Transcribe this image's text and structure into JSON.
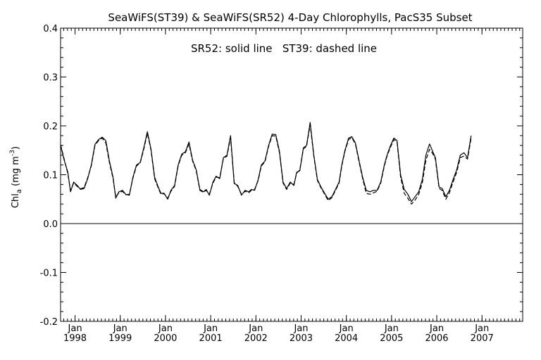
{
  "chart_data": {
    "type": "line",
    "title": "SeaWiFS(ST39) & SeaWiFS(SR52) 4-Day Chlorophylls, PacS35 Subset",
    "annotation": "SR52: solid line   ST39: dashed line",
    "ylabel": {
      "main": "Chl",
      "subscript": "a",
      "unit_open": " (mg m",
      "unit_sup": "-3",
      "unit_close": ")"
    },
    "ylim": [
      -0.2,
      0.4
    ],
    "yticks": [
      -0.2,
      -0.1,
      0.0,
      0.1,
      0.2,
      0.3,
      0.4
    ],
    "ytick_labels": [
      "-0.2",
      "-0.1",
      "0.0",
      "0.1",
      "0.2",
      "0.3",
      "0.4"
    ],
    "zero_line": 0.0,
    "xlim": [
      1997.68,
      2007.9
    ],
    "xticks": [
      {
        "x": 1998.0,
        "month": "Jan",
        "year": "1998"
      },
      {
        "x": 1999.0,
        "month": "Jan",
        "year": "1999"
      },
      {
        "x": 2000.0,
        "month": "Jan",
        "year": "2000"
      },
      {
        "x": 2001.0,
        "month": "Jan",
        "year": "2001"
      },
      {
        "x": 2002.0,
        "month": "Jan",
        "year": "2002"
      },
      {
        "x": 2003.0,
        "month": "Jan",
        "year": "2003"
      },
      {
        "x": 2004.0,
        "month": "Jan",
        "year": "2004"
      },
      {
        "x": 2005.0,
        "month": "Jan",
        "year": "2005"
      },
      {
        "x": 2006.0,
        "month": "Jan",
        "year": "2006"
      },
      {
        "x": 2007.0,
        "month": "Jan",
        "year": "2007"
      }
    ],
    "minor_ticks_per_year": 12,
    "grid": false,
    "series": [
      {
        "name": "SR52",
        "style": "solid",
        "points": [
          [
            1997.68,
            0.16
          ],
          [
            1997.76,
            0.13
          ],
          [
            1997.84,
            0.105
          ],
          [
            1997.9,
            0.065
          ],
          [
            1997.97,
            0.085
          ],
          [
            1998.05,
            0.078
          ],
          [
            1998.12,
            0.07
          ],
          [
            1998.2,
            0.072
          ],
          [
            1998.28,
            0.092
          ],
          [
            1998.36,
            0.12
          ],
          [
            1998.44,
            0.162
          ],
          [
            1998.52,
            0.172
          ],
          [
            1998.6,
            0.177
          ],
          [
            1998.68,
            0.17
          ],
          [
            1998.76,
            0.128
          ],
          [
            1998.84,
            0.095
          ],
          [
            1998.9,
            0.052
          ],
          [
            1998.97,
            0.065
          ],
          [
            1999.05,
            0.068
          ],
          [
            1999.12,
            0.06
          ],
          [
            1999.2,
            0.058
          ],
          [
            1999.28,
            0.095
          ],
          [
            1999.36,
            0.12
          ],
          [
            1999.44,
            0.125
          ],
          [
            1999.52,
            0.155
          ],
          [
            1999.6,
            0.188
          ],
          [
            1999.68,
            0.152
          ],
          [
            1999.76,
            0.095
          ],
          [
            1999.84,
            0.075
          ],
          [
            1999.9,
            0.062
          ],
          [
            1999.97,
            0.062
          ],
          [
            2000.05,
            0.05
          ],
          [
            2000.12,
            0.068
          ],
          [
            2000.2,
            0.078
          ],
          [
            2000.28,
            0.12
          ],
          [
            2000.36,
            0.142
          ],
          [
            2000.44,
            0.147
          ],
          [
            2000.52,
            0.167
          ],
          [
            2000.6,
            0.13
          ],
          [
            2000.68,
            0.11
          ],
          [
            2000.76,
            0.07
          ],
          [
            2000.84,
            0.065
          ],
          [
            2000.9,
            0.07
          ],
          [
            2000.97,
            0.058
          ],
          [
            2001.05,
            0.085
          ],
          [
            2001.12,
            0.097
          ],
          [
            2001.2,
            0.092
          ],
          [
            2001.28,
            0.135
          ],
          [
            2001.36,
            0.14
          ],
          [
            2001.44,
            0.18
          ],
          [
            2001.52,
            0.082
          ],
          [
            2001.6,
            0.078
          ],
          [
            2001.68,
            0.058
          ],
          [
            2001.76,
            0.068
          ],
          [
            2001.84,
            0.065
          ],
          [
            2001.9,
            0.07
          ],
          [
            2001.97,
            0.068
          ],
          [
            2002.05,
            0.09
          ],
          [
            2002.12,
            0.12
          ],
          [
            2002.2,
            0.128
          ],
          [
            2002.28,
            0.16
          ],
          [
            2002.36,
            0.183
          ],
          [
            2002.44,
            0.182
          ],
          [
            2002.52,
            0.148
          ],
          [
            2002.6,
            0.085
          ],
          [
            2002.68,
            0.072
          ],
          [
            2002.76,
            0.085
          ],
          [
            2002.84,
            0.078
          ],
          [
            2002.9,
            0.105
          ],
          [
            2002.97,
            0.108
          ],
          [
            2003.05,
            0.155
          ],
          [
            2003.12,
            0.16
          ],
          [
            2003.2,
            0.207
          ],
          [
            2003.28,
            0.14
          ],
          [
            2003.36,
            0.09
          ],
          [
            2003.44,
            0.075
          ],
          [
            2003.52,
            0.062
          ],
          [
            2003.6,
            0.05
          ],
          [
            2003.68,
            0.055
          ],
          [
            2003.76,
            0.07
          ],
          [
            2003.84,
            0.085
          ],
          [
            2003.9,
            0.12
          ],
          [
            2003.97,
            0.15
          ],
          [
            2004.05,
            0.175
          ],
          [
            2004.12,
            0.178
          ],
          [
            2004.2,
            0.165
          ],
          [
            2004.28,
            0.13
          ],
          [
            2004.36,
            0.095
          ],
          [
            2004.44,
            0.068
          ],
          [
            2004.52,
            0.065
          ],
          [
            2004.6,
            0.068
          ],
          [
            2004.68,
            0.068
          ],
          [
            2004.76,
            0.085
          ],
          [
            2004.84,
            0.12
          ],
          [
            2004.9,
            0.14
          ],
          [
            2004.97,
            0.158
          ],
          [
            2005.05,
            0.175
          ],
          [
            2005.12,
            0.17
          ],
          [
            2005.2,
            0.1
          ],
          [
            2005.28,
            0.07
          ],
          [
            2005.36,
            0.06
          ],
          [
            2005.44,
            0.045
          ],
          [
            2005.52,
            0.055
          ],
          [
            2005.6,
            0.065
          ],
          [
            2005.68,
            0.09
          ],
          [
            2005.76,
            0.14
          ],
          [
            2005.84,
            0.163
          ],
          [
            2005.9,
            0.15
          ],
          [
            2005.97,
            0.135
          ],
          [
            2006.05,
            0.075
          ],
          [
            2006.12,
            0.072
          ],
          [
            2006.2,
            0.055
          ],
          [
            2006.28,
            0.068
          ],
          [
            2006.36,
            0.09
          ],
          [
            2006.44,
            0.11
          ],
          [
            2006.52,
            0.14
          ],
          [
            2006.6,
            0.145
          ],
          [
            2006.68,
            0.135
          ],
          [
            2006.76,
            0.18
          ]
        ]
      },
      {
        "name": "ST39",
        "style": "dashed",
        "points": [
          [
            1997.68,
            0.162
          ],
          [
            1997.76,
            0.132
          ],
          [
            1997.84,
            0.102
          ],
          [
            1997.9,
            0.068
          ],
          [
            1997.97,
            0.083
          ],
          [
            1998.05,
            0.076
          ],
          [
            1998.12,
            0.071
          ],
          [
            1998.2,
            0.074
          ],
          [
            1998.28,
            0.094
          ],
          [
            1998.36,
            0.118
          ],
          [
            1998.44,
            0.16
          ],
          [
            1998.52,
            0.17
          ],
          [
            1998.6,
            0.175
          ],
          [
            1998.68,
            0.165
          ],
          [
            1998.76,
            0.125
          ],
          [
            1998.84,
            0.092
          ],
          [
            1998.9,
            0.055
          ],
          [
            1998.97,
            0.063
          ],
          [
            1999.05,
            0.066
          ],
          [
            1999.12,
            0.059
          ],
          [
            1999.2,
            0.06
          ],
          [
            1999.28,
            0.093
          ],
          [
            1999.36,
            0.118
          ],
          [
            1999.44,
            0.124
          ],
          [
            1999.52,
            0.152
          ],
          [
            1999.6,
            0.185
          ],
          [
            1999.68,
            0.15
          ],
          [
            1999.76,
            0.092
          ],
          [
            1999.84,
            0.073
          ],
          [
            1999.9,
            0.06
          ],
          [
            1999.97,
            0.061
          ],
          [
            2000.05,
            0.052
          ],
          [
            2000.12,
            0.066
          ],
          [
            2000.2,
            0.076
          ],
          [
            2000.28,
            0.118
          ],
          [
            2000.36,
            0.14
          ],
          [
            2000.44,
            0.145
          ],
          [
            2000.52,
            0.163
          ],
          [
            2000.6,
            0.128
          ],
          [
            2000.68,
            0.108
          ],
          [
            2000.76,
            0.068
          ],
          [
            2000.84,
            0.064
          ],
          [
            2000.9,
            0.068
          ],
          [
            2000.97,
            0.06
          ],
          [
            2001.05,
            0.083
          ],
          [
            2001.12,
            0.095
          ],
          [
            2001.2,
            0.094
          ],
          [
            2001.28,
            0.133
          ],
          [
            2001.36,
            0.138
          ],
          [
            2001.44,
            0.176
          ],
          [
            2001.52,
            0.084
          ],
          [
            2001.6,
            0.076
          ],
          [
            2001.68,
            0.06
          ],
          [
            2001.76,
            0.066
          ],
          [
            2001.84,
            0.063
          ],
          [
            2001.9,
            0.068
          ],
          [
            2001.97,
            0.07
          ],
          [
            2002.05,
            0.088
          ],
          [
            2002.12,
            0.118
          ],
          [
            2002.2,
            0.126
          ],
          [
            2002.28,
            0.158
          ],
          [
            2002.36,
            0.18
          ],
          [
            2002.44,
            0.179
          ],
          [
            2002.52,
            0.145
          ],
          [
            2002.6,
            0.083
          ],
          [
            2002.68,
            0.07
          ],
          [
            2002.76,
            0.083
          ],
          [
            2002.84,
            0.08
          ],
          [
            2002.9,
            0.103
          ],
          [
            2002.97,
            0.11
          ],
          [
            2003.05,
            0.153
          ],
          [
            2003.12,
            0.158
          ],
          [
            2003.2,
            0.203
          ],
          [
            2003.28,
            0.138
          ],
          [
            2003.36,
            0.088
          ],
          [
            2003.44,
            0.073
          ],
          [
            2003.52,
            0.06
          ],
          [
            2003.6,
            0.047
          ],
          [
            2003.68,
            0.053
          ],
          [
            2003.76,
            0.068
          ],
          [
            2003.84,
            0.083
          ],
          [
            2003.9,
            0.118
          ],
          [
            2003.97,
            0.148
          ],
          [
            2004.05,
            0.172
          ],
          [
            2004.12,
            0.176
          ],
          [
            2004.2,
            0.163
          ],
          [
            2004.28,
            0.127
          ],
          [
            2004.36,
            0.092
          ],
          [
            2004.44,
            0.062
          ],
          [
            2004.52,
            0.06
          ],
          [
            2004.6,
            0.063
          ],
          [
            2004.68,
            0.066
          ],
          [
            2004.76,
            0.083
          ],
          [
            2004.84,
            0.118
          ],
          [
            2004.9,
            0.138
          ],
          [
            2004.97,
            0.155
          ],
          [
            2005.05,
            0.172
          ],
          [
            2005.12,
            0.167
          ],
          [
            2005.2,
            0.095
          ],
          [
            2005.28,
            0.062
          ],
          [
            2005.36,
            0.052
          ],
          [
            2005.44,
            0.04
          ],
          [
            2005.52,
            0.048
          ],
          [
            2005.6,
            0.06
          ],
          [
            2005.68,
            0.083
          ],
          [
            2005.76,
            0.13
          ],
          [
            2005.84,
            0.152
          ],
          [
            2005.9,
            0.145
          ],
          [
            2005.97,
            0.132
          ],
          [
            2006.05,
            0.072
          ],
          [
            2006.12,
            0.068
          ],
          [
            2006.2,
            0.05
          ],
          [
            2006.28,
            0.063
          ],
          [
            2006.36,
            0.085
          ],
          [
            2006.44,
            0.105
          ],
          [
            2006.52,
            0.135
          ],
          [
            2006.6,
            0.138
          ],
          [
            2006.68,
            0.132
          ],
          [
            2006.76,
            0.175
          ]
        ]
      }
    ]
  }
}
